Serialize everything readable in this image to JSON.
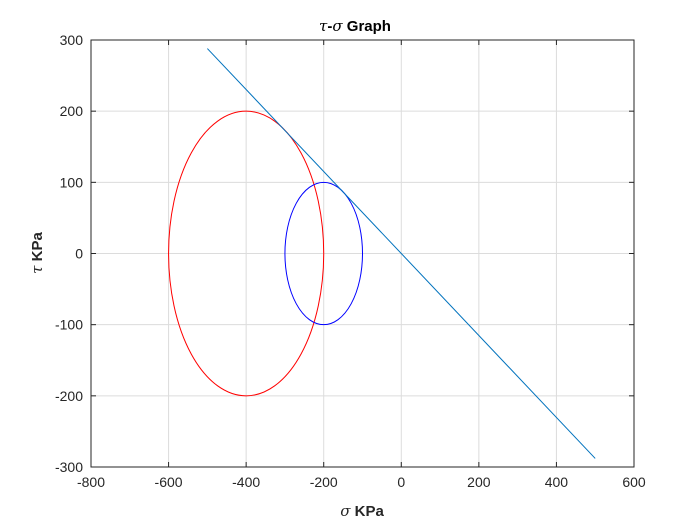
{
  "chart_data": {
    "type": "line",
    "title": {
      "sym1": "τ",
      "dash": "-",
      "sym2": "σ",
      "rest": " Graph"
    },
    "xlabel": {
      "sym": "σ",
      "rest": " KPa"
    },
    "ylabel": {
      "sym": "τ",
      "rest": " KPa"
    },
    "xlim": [
      -800,
      600
    ],
    "ylim": [
      -300,
      300
    ],
    "xticks": [
      -800,
      -600,
      -400,
      -200,
      0,
      200,
      400,
      600
    ],
    "yticks": [
      -300,
      -200,
      -100,
      0,
      100,
      200,
      300
    ],
    "xtick_labels": [
      "-800",
      "-600",
      "-400",
      "-200",
      "0",
      "200",
      "400",
      "600"
    ],
    "ytick_labels": [
      "-300",
      "-200",
      "-100",
      "0",
      "100",
      "200",
      "300"
    ],
    "grid": true,
    "series": [
      {
        "shape": "circle",
        "center": [
          -400,
          0
        ],
        "radius": 200,
        "color": "#ff0000"
      },
      {
        "shape": "circle",
        "center": [
          -200,
          0
        ],
        "radius": 100,
        "color": "#0000ff"
      },
      {
        "shape": "line",
        "x": [
          -500,
          500
        ],
        "y": [
          288,
          -288
        ],
        "color": "#0072bd"
      }
    ]
  }
}
